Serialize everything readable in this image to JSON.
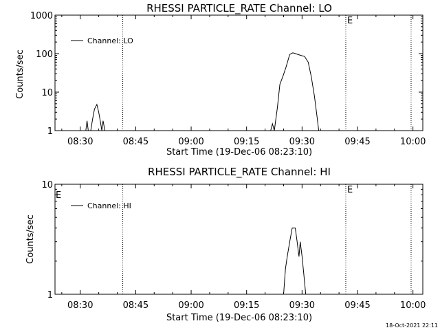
{
  "footer": {
    "timestamp": "18-Oct-2021 22:11"
  },
  "chart_data": [
    {
      "type": "line",
      "title": "RHESSI PARTICLE_RATE Channel: LO",
      "xlabel": "Start Time (19-Dec-06 08:23:10)",
      "ylabel": "Counts/sec",
      "y_scale": "log",
      "ylim": [
        1,
        1000
      ],
      "y_ticks": [
        1,
        10,
        100,
        1000
      ],
      "y_tick_labels": [
        "1",
        "10",
        "100",
        "1000"
      ],
      "x_ticks": [
        "08:30",
        "08:45",
        "09:00",
        "09:15",
        "09:30",
        "09:45",
        "10:00"
      ],
      "x_range": [
        "08:23:10",
        "10:02:40"
      ],
      "legend": {
        "label": "Channel: LO",
        "position": "top-left"
      },
      "markers": [
        {
          "time": "08:41:30",
          "label": ""
        },
        {
          "time": "09:41:50",
          "label": "E"
        },
        {
          "time": "09:59:30",
          "label": ""
        }
      ],
      "series": [
        {
          "points": [
            [
              "08:31:30",
              1
            ],
            [
              "08:31:50",
              1.8
            ],
            [
              "08:32:10",
              1
            ],
            [
              "08:32:50",
              1
            ],
            [
              "08:33:20",
              2.0
            ],
            [
              "08:33:50",
              3.6
            ],
            [
              "08:34:30",
              4.8
            ],
            [
              "08:35:00",
              3.0
            ],
            [
              "08:35:30",
              1.6
            ],
            [
              "08:35:50",
              1.0
            ],
            [
              "08:36:10",
              1.8
            ],
            [
              "08:36:40",
              1
            ],
            [
              "09:21:30",
              1
            ],
            [
              "09:22:00",
              1.5
            ],
            [
              "09:22:30",
              1
            ],
            [
              "09:23:20",
              4
            ],
            [
              "09:24:00",
              16
            ],
            [
              "09:24:50",
              26
            ],
            [
              "09:25:40",
              45
            ],
            [
              "09:26:40",
              95
            ],
            [
              "09:27:30",
              105
            ],
            [
              "09:28:30",
              98
            ],
            [
              "09:29:40",
              90
            ],
            [
              "09:30:40",
              85
            ],
            [
              "09:31:40",
              60
            ],
            [
              "09:32:30",
              25
            ],
            [
              "09:33:20",
              8
            ],
            [
              "09:34:00",
              2.5
            ],
            [
              "09:34:30",
              1
            ]
          ]
        }
      ]
    },
    {
      "type": "line",
      "title": "RHESSI PARTICLE_RATE Channel: HI",
      "xlabel": "Start Time (19-Dec-06 08:23:10)",
      "ylabel": "Counts/sec",
      "y_scale": "log",
      "ylim": [
        1,
        10
      ],
      "y_ticks": [
        1,
        10
      ],
      "y_tick_labels": [
        "1",
        "10"
      ],
      "x_ticks": [
        "08:30",
        "08:45",
        "09:00",
        "09:15",
        "09:30",
        "09:45",
        "10:00"
      ],
      "x_range": [
        "08:23:10",
        "10:02:40"
      ],
      "legend": {
        "label": "Channel: HI",
        "position": "top-left"
      },
      "markers": [
        {
          "time": "08:41:30",
          "label": ""
        },
        {
          "time": "09:41:50",
          "label": "E"
        },
        {
          "time": "09:59:30",
          "label": ""
        }
      ],
      "left_marker_label": "E",
      "series": [
        {
          "points": [
            [
              "09:25:00",
              1
            ],
            [
              "09:25:30",
              1.7
            ],
            [
              "09:26:00",
              2.2
            ],
            [
              "09:26:40",
              3.0
            ],
            [
              "09:27:20",
              4.0
            ],
            [
              "09:28:10",
              4.0
            ],
            [
              "09:28:40",
              3.0
            ],
            [
              "09:29:10",
              2.2
            ],
            [
              "09:29:30",
              3.0
            ],
            [
              "09:30:00",
              2.2
            ],
            [
              "09:30:30",
              1.5
            ],
            [
              "09:31:00",
              1
            ]
          ]
        }
      ]
    }
  ]
}
